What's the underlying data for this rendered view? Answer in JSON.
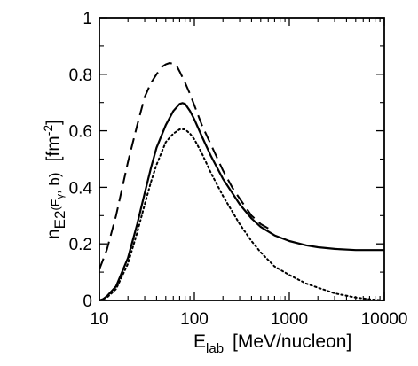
{
  "chart_data": {
    "type": "line",
    "xscale": "log",
    "xlim": [
      10,
      10000
    ],
    "ylim": [
      0,
      1
    ],
    "grid": false,
    "legend": "none",
    "xlabel": {
      "main": "E",
      "sub": "lab",
      "unit": "[MeV/nucleon]"
    },
    "ylabel": {
      "main": "n",
      "sub": "E2",
      "args": "(E",
      "gamma": "γ",
      "args_end": ", b)",
      "unit_open": "[fm",
      "unit_exp": "-2",
      "unit_close": "]"
    },
    "x_ticks": [
      {
        "value": 10,
        "label": "10"
      },
      {
        "value": 100,
        "label": "100"
      },
      {
        "value": 1000,
        "label": "1000"
      },
      {
        "value": 10000,
        "label": "10000"
      }
    ],
    "y_ticks": [
      {
        "value": 0,
        "label": "0"
      },
      {
        "value": 0.2,
        "label": "0.2"
      },
      {
        "value": 0.4,
        "label": "0.4"
      },
      {
        "value": 0.6,
        "label": "0.6"
      },
      {
        "value": 0.8,
        "label": "0.8"
      },
      {
        "value": 1,
        "label": "1"
      }
    ],
    "series": [
      {
        "style": "dashed",
        "color": "#000000",
        "x": [
          10,
          12,
          15,
          20,
          25,
          30,
          35,
          40,
          45,
          50,
          55,
          60,
          65,
          70,
          80,
          90,
          100,
          120,
          150,
          200,
          250,
          300,
          400,
          500,
          600
        ],
        "y": [
          0.11,
          0.18,
          0.3,
          0.49,
          0.62,
          0.72,
          0.77,
          0.8,
          0.825,
          0.835,
          0.84,
          0.837,
          0.83,
          0.81,
          0.77,
          0.73,
          0.69,
          0.62,
          0.55,
          0.46,
          0.4,
          0.36,
          0.3,
          0.27,
          0.255
        ]
      },
      {
        "style": "solid",
        "color": "#000000",
        "x": [
          10,
          11,
          12,
          15,
          20,
          25,
          30,
          35,
          40,
          50,
          60,
          70,
          75,
          80,
          90,
          100,
          120,
          150,
          200,
          300,
          400,
          500,
          700,
          1000,
          1500,
          2000,
          3000,
          5000,
          7000,
          10000
        ],
        "y": [
          0.0,
          0.005,
          0.015,
          0.05,
          0.15,
          0.27,
          0.38,
          0.47,
          0.54,
          0.62,
          0.67,
          0.695,
          0.698,
          0.695,
          0.67,
          0.64,
          0.58,
          0.51,
          0.43,
          0.34,
          0.29,
          0.26,
          0.23,
          0.21,
          0.195,
          0.188,
          0.182,
          0.178,
          0.178,
          0.178
        ]
      },
      {
        "style": "dotted",
        "color": "#000000",
        "x": [
          10,
          12,
          15,
          20,
          25,
          30,
          35,
          40,
          50,
          60,
          70,
          80,
          90,
          100,
          120,
          150,
          200,
          300,
          400,
          500,
          700,
          1000,
          1500,
          2000,
          3000,
          5000,
          7000,
          10000
        ],
        "y": [
          0.0,
          0.01,
          0.04,
          0.13,
          0.24,
          0.34,
          0.42,
          0.48,
          0.56,
          0.59,
          0.605,
          0.605,
          0.59,
          0.57,
          0.52,
          0.45,
          0.37,
          0.27,
          0.21,
          0.17,
          0.12,
          0.09,
          0.06,
          0.045,
          0.025,
          0.01,
          0.004,
          0.0
        ]
      }
    ]
  }
}
